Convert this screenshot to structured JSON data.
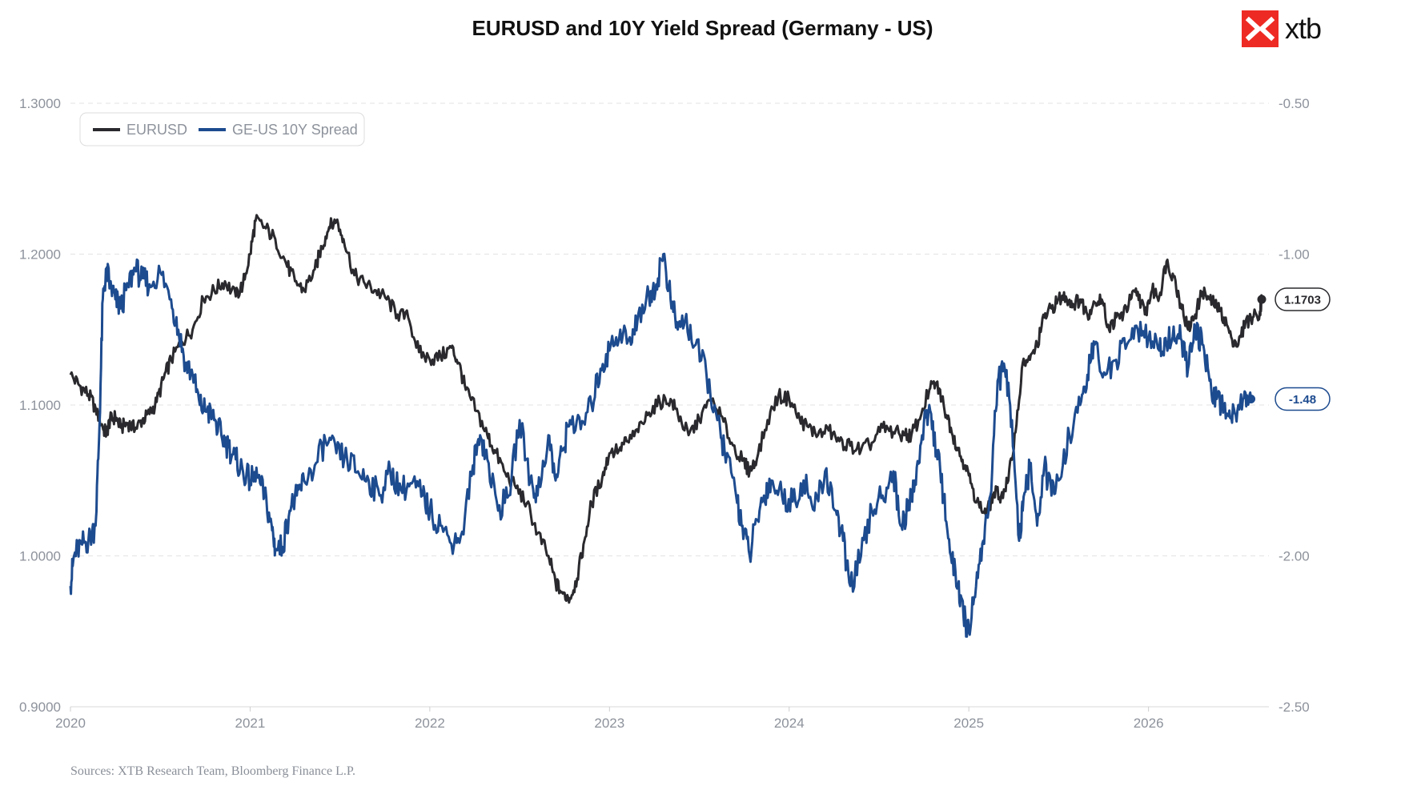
{
  "title": "EURUSD and 10Y Yield Spread (Germany - US)",
  "logo": {
    "text": "xtb",
    "brand_color": "#ee2a24"
  },
  "source_note": "Sources: XTB Research Team, Bloomberg Finance L.P.",
  "chart_data": {
    "type": "line",
    "title": "EURUSD and 10Y Yield Spread (Germany - US)",
    "grid": true,
    "legend": {
      "position": "top-left",
      "entries": [
        "EURUSD",
        "GE-US 10Y Spread"
      ]
    },
    "x_ticks": [
      "2020",
      "2021",
      "2022",
      "2023",
      "2024",
      "2025",
      "2026"
    ],
    "x_range": [
      2020.0,
      2026.67
    ],
    "y_left": {
      "ticks": [
        "1.3000",
        "1.2000",
        "1.1000",
        "1.0000",
        "0.9000"
      ],
      "range": [
        0.9,
        1.3
      ]
    },
    "y_right": {
      "ticks": [
        "-0.50",
        "-1.00",
        "-1.50",
        "-2.00",
        "-2.50"
      ],
      "range": [
        -2.5,
        -0.5
      ]
    },
    "series": [
      {
        "name": "EURUSD",
        "color": "#2a2a2e",
        "axis": "left",
        "last_value_label": "1.1703",
        "x": [
          2020.0,
          2020.05,
          2020.1,
          2020.14,
          2020.18,
          2020.2,
          2020.22,
          2020.25,
          2020.28,
          2020.32,
          2020.36,
          2020.4,
          2020.44,
          2020.48,
          2020.52,
          2020.56,
          2020.62,
          2020.68,
          2020.74,
          2020.8,
          2020.86,
          2020.92,
          2020.96,
          2021.0,
          2021.03,
          2021.08,
          2021.14,
          2021.2,
          2021.25,
          2021.3,
          2021.36,
          2021.4,
          2021.44,
          2021.48,
          2021.52,
          2021.58,
          2021.64,
          2021.7,
          2021.76,
          2021.82,
          2021.88,
          2021.94,
          2022.0,
          2022.06,
          2022.12,
          2022.16,
          2022.2,
          2022.26,
          2022.32,
          2022.36,
          2022.42,
          2022.48,
          2022.54,
          2022.6,
          2022.66,
          2022.7,
          2022.74,
          2022.78,
          2022.82,
          2022.86,
          2022.9,
          2022.96,
          2023.0,
          2023.06,
          2023.1,
          2023.16,
          2023.22,
          2023.28,
          2023.34,
          2023.38,
          2023.44,
          2023.5,
          2023.56,
          2023.62,
          2023.68,
          2023.74,
          2023.78,
          2023.82,
          2023.88,
          2023.94,
          2024.0,
          2024.06,
          2024.1,
          2024.16,
          2024.22,
          2024.28,
          2024.34,
          2024.4,
          2024.46,
          2024.52,
          2024.58,
          2024.64,
          2024.68,
          2024.72,
          2024.78,
          2024.82,
          2024.86,
          2024.9,
          2024.94,
          2024.98,
          2025.02,
          2025.06,
          2025.1,
          2025.14,
          2025.18,
          2025.22,
          2025.26,
          2025.3,
          2025.34,
          2025.38,
          2025.42,
          2025.46,
          2025.5,
          2025.54,
          2025.58,
          2025.62,
          2025.66,
          2025.7,
          2025.74,
          2025.78,
          2025.82,
          2025.86,
          2025.9,
          2025.94,
          2025.98,
          2026.02,
          2026.06,
          2026.1,
          2026.14,
          2026.18,
          2026.22,
          2026.26,
          2026.3,
          2026.34,
          2026.38,
          2026.42,
          2026.46,
          2026.5,
          2026.54,
          2026.58,
          2026.62,
          2026.63
        ],
        "y": [
          1.12,
          1.113,
          1.107,
          1.098,
          1.085,
          1.081,
          1.09,
          1.092,
          1.085,
          1.088,
          1.084,
          1.09,
          1.094,
          1.102,
          1.118,
          1.13,
          1.142,
          1.15,
          1.17,
          1.176,
          1.182,
          1.172,
          1.18,
          1.2,
          1.222,
          1.218,
          1.21,
          1.194,
          1.182,
          1.176,
          1.19,
          1.205,
          1.218,
          1.222,
          1.21,
          1.186,
          1.18,
          1.176,
          1.17,
          1.16,
          1.158,
          1.135,
          1.13,
          1.132,
          1.138,
          1.128,
          1.11,
          1.096,
          1.08,
          1.07,
          1.055,
          1.045,
          1.035,
          1.015,
          1.0,
          0.982,
          0.975,
          0.972,
          0.985,
          1.01,
          1.035,
          1.052,
          1.068,
          1.072,
          1.076,
          1.082,
          1.095,
          1.102,
          1.104,
          1.094,
          1.08,
          1.09,
          1.103,
          1.093,
          1.075,
          1.063,
          1.056,
          1.064,
          1.09,
          1.106,
          1.104,
          1.09,
          1.086,
          1.08,
          1.083,
          1.076,
          1.073,
          1.07,
          1.075,
          1.085,
          1.082,
          1.08,
          1.08,
          1.09,
          1.11,
          1.115,
          1.1,
          1.085,
          1.07,
          1.06,
          1.045,
          1.032,
          1.028,
          1.042,
          1.04,
          1.05,
          1.082,
          1.128,
          1.13,
          1.14,
          1.158,
          1.164,
          1.17,
          1.172,
          1.167,
          1.17,
          1.16,
          1.168,
          1.17,
          1.15,
          1.158,
          1.16,
          1.17,
          1.175,
          1.16,
          1.176,
          1.172,
          1.195,
          1.185,
          1.167,
          1.15,
          1.16,
          1.175,
          1.17,
          1.165,
          1.158,
          1.145,
          1.14,
          1.155,
          1.158,
          1.162,
          1.17
        ]
      },
      {
        "name": "GE-US 10Y Spread",
        "color": "#1d4b8f",
        "axis": "right",
        "last_value_label": "-1.48",
        "x": [
          2020.0,
          2020.02,
          2020.06,
          2020.1,
          2020.14,
          2020.16,
          2020.18,
          2020.2,
          2020.22,
          2020.25,
          2020.28,
          2020.32,
          2020.36,
          2020.4,
          2020.44,
          2020.5,
          2020.56,
          2020.6,
          2020.64,
          2020.68,
          2020.72,
          2020.76,
          2020.8,
          2020.84,
          2020.88,
          2020.92,
          2020.96,
          2021.0,
          2021.04,
          2021.08,
          2021.12,
          2021.14,
          2021.18,
          2021.22,
          2021.26,
          2021.3,
          2021.36,
          2021.42,
          2021.48,
          2021.54,
          2021.6,
          2021.66,
          2021.72,
          2021.78,
          2021.84,
          2021.9,
          2021.96,
          2022.0,
          2022.06,
          2022.12,
          2022.18,
          2022.24,
          2022.28,
          2022.32,
          2022.38,
          2022.44,
          2022.5,
          2022.56,
          2022.6,
          2022.66,
          2022.7,
          2022.74,
          2022.78,
          2022.84,
          2022.9,
          2022.95,
          2023.0,
          2023.06,
          2023.12,
          2023.16,
          2023.22,
          2023.26,
          2023.3,
          2023.34,
          2023.38,
          2023.42,
          2023.48,
          2023.54,
          2023.6,
          2023.64,
          2023.7,
          2023.74,
          2023.78,
          2023.82,
          2023.86,
          2023.9,
          2023.96,
          2024.02,
          2024.08,
          2024.14,
          2024.2,
          2024.26,
          2024.3,
          2024.34,
          2024.4,
          2024.46,
          2024.52,
          2024.58,
          2024.62,
          2024.66,
          2024.7,
          2024.74,
          2024.78,
          2024.82,
          2024.86,
          2024.9,
          2024.94,
          2024.97,
          2025.0,
          2025.04,
          2025.08,
          2025.12,
          2025.16,
          2025.2,
          2025.24,
          2025.28,
          2025.3,
          2025.34,
          2025.38,
          2025.42,
          2025.46,
          2025.5,
          2025.56,
          2025.62,
          2025.66,
          2025.7,
          2025.76,
          2025.82,
          2025.88,
          2025.94,
          2026.0,
          2026.06,
          2026.1,
          2026.14,
          2026.18,
          2026.22,
          2026.26,
          2026.3,
          2026.34,
          2026.38,
          2026.42,
          2026.46,
          2026.5,
          2026.54,
          2026.57
        ],
        "y": [
          -2.1,
          -2.0,
          -1.96,
          -1.95,
          -1.9,
          -1.6,
          -1.15,
          -1.05,
          -1.1,
          -1.15,
          -1.18,
          -1.1,
          -1.05,
          -1.08,
          -1.1,
          -1.06,
          -1.15,
          -1.25,
          -1.36,
          -1.4,
          -1.5,
          -1.52,
          -1.55,
          -1.6,
          -1.64,
          -1.68,
          -1.72,
          -1.75,
          -1.74,
          -1.8,
          -1.9,
          -1.98,
          -1.97,
          -1.85,
          -1.8,
          -1.75,
          -1.7,
          -1.62,
          -1.66,
          -1.68,
          -1.72,
          -1.75,
          -1.8,
          -1.72,
          -1.78,
          -1.76,
          -1.8,
          -1.85,
          -1.9,
          -1.96,
          -1.92,
          -1.7,
          -1.6,
          -1.68,
          -1.85,
          -1.8,
          -1.55,
          -1.75,
          -1.8,
          -1.6,
          -1.75,
          -1.65,
          -1.55,
          -1.58,
          -1.5,
          -1.38,
          -1.32,
          -1.25,
          -1.3,
          -1.2,
          -1.14,
          -1.1,
          -1.0,
          -1.15,
          -1.25,
          -1.22,
          -1.3,
          -1.4,
          -1.55,
          -1.65,
          -1.78,
          -1.9,
          -2.0,
          -1.88,
          -1.8,
          -1.75,
          -1.8,
          -1.82,
          -1.75,
          -1.85,
          -1.72,
          -1.85,
          -1.95,
          -2.1,
          -2.0,
          -1.85,
          -1.8,
          -1.72,
          -1.9,
          -1.85,
          -1.75,
          -1.6,
          -1.5,
          -1.65,
          -1.8,
          -2.0,
          -2.1,
          -2.2,
          -2.25,
          -2.1,
          -1.95,
          -1.8,
          -1.42,
          -1.38,
          -1.55,
          -1.95,
          -1.85,
          -1.7,
          -1.9,
          -1.7,
          -1.8,
          -1.75,
          -1.6,
          -1.5,
          -1.4,
          -1.3,
          -1.4,
          -1.35,
          -1.3,
          -1.25,
          -1.28,
          -1.32,
          -1.3,
          -1.24,
          -1.28,
          -1.38,
          -1.25,
          -1.3,
          -1.42,
          -1.48,
          -1.5,
          -1.54,
          -1.5,
          -1.46,
          -1.48
        ]
      }
    ]
  }
}
